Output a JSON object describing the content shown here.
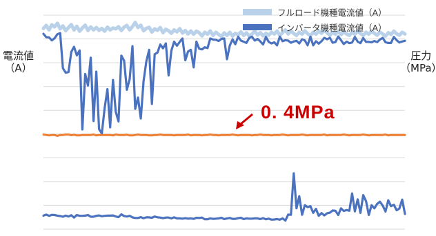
{
  "colors": {
    "full_load": "#b9d1e9",
    "inverter": "#4a72bf",
    "pressure": "#ed7d31",
    "annotation": "#cc0000",
    "grid": "#d9d9d9"
  },
  "left_axis": {
    "title_line1": "電流値",
    "title_line2": "（A）"
  },
  "right_axis": {
    "title_line1": "圧力",
    "title_line2": "（MPa）"
  },
  "annotation": {
    "text": "0. 4MPa"
  },
  "chart_data": {
    "type": "line",
    "grid": true,
    "legend_position": "top-right",
    "x": [
      0,
      1,
      2,
      3,
      4,
      5,
      6,
      7,
      8,
      9,
      10,
      11,
      12,
      13,
      14,
      15,
      16,
      17,
      18,
      19,
      20,
      21,
      22,
      23,
      24,
      25,
      26,
      27,
      28,
      29,
      30,
      31,
      32,
      33,
      34,
      35,
      36,
      37,
      38,
      39,
      40,
      41,
      42,
      43,
      44,
      45,
      46,
      47,
      48,
      49,
      50,
      51,
      52,
      53,
      54,
      55,
      56,
      57,
      58,
      59,
      60,
      61,
      62,
      63,
      64,
      65,
      66,
      67,
      68,
      69,
      70,
      71,
      72,
      73,
      74,
      75,
      76,
      77,
      78,
      79,
      80,
      81,
      82,
      83,
      84,
      85,
      86,
      87,
      88,
      89,
      90,
      91,
      92,
      93,
      94,
      95,
      96,
      97,
      98,
      99,
      100,
      101,
      102,
      103,
      104,
      105,
      106,
      107,
      108,
      109,
      110,
      111,
      112,
      113,
      114,
      115,
      116,
      117,
      118,
      119,
      120,
      121,
      122,
      123,
      124,
      125,
      126,
      127,
      128,
      129,
      130
    ],
    "series": [
      {
        "name": "フルロード機種電流値（A）",
        "color": "#b9d1e9",
        "values": [
          0.938,
          0.952,
          0.931,
          0.955,
          0.945,
          0.962,
          0.936,
          0.95,
          0.927,
          0.942,
          0.956,
          0.931,
          0.948,
          0.925,
          0.94,
          0.953,
          0.928,
          0.945,
          0.931,
          0.942,
          0.929,
          0.938,
          0.925,
          0.944,
          0.931,
          0.94,
          0.936,
          0.946,
          0.928,
          0.944,
          0.952,
          0.931,
          0.947,
          0.966,
          0.942,
          0.953,
          0.927,
          0.938,
          0.943,
          0.921,
          0.936,
          0.929,
          0.942,
          0.918,
          0.934,
          0.927,
          0.915,
          0.931,
          0.922,
          0.937,
          0.916,
          0.928,
          0.912,
          0.926,
          0.911,
          0.925,
          0.918,
          0.903,
          0.92,
          0.911,
          0.926,
          0.905,
          0.92,
          0.91,
          0.9,
          0.917,
          0.905,
          0.92,
          0.902,
          0.915,
          0.908,
          0.922,
          0.905,
          0.917,
          0.903,
          0.912,
          0.925,
          0.907,
          0.918,
          0.903,
          0.915,
          0.906,
          0.92,
          0.912,
          0.926,
          0.905,
          0.918,
          0.931,
          0.912,
          0.926,
          0.914,
          0.905,
          0.92,
          0.911,
          0.927,
          0.913,
          0.904,
          0.92,
          0.911,
          0.926,
          0.915,
          0.93,
          0.918,
          0.905,
          0.92,
          0.911,
          0.924,
          0.909,
          0.922,
          0.912,
          0.905,
          0.92,
          0.911,
          0.926,
          0.914,
          0.905,
          0.92,
          0.911,
          0.925,
          0.915,
          0.906,
          0.921,
          0.912,
          0.902,
          0.918,
          0.91,
          0.925,
          0.913,
          0.906,
          0.92,
          0.912
        ]
      },
      {
        "name": "インバータ機種電流値（A）",
        "color": "#4a72bf",
        "values": [
          0.913,
          0.897,
          0.896,
          0.882,
          0.892,
          0.911,
          0.916,
          0.752,
          0.731,
          0.734,
          0.828,
          0.852,
          0.812,
          0.835,
          0.466,
          0.725,
          0.671,
          0.801,
          0.505,
          0.736,
          0.467,
          0.447,
          0.566,
          0.654,
          0.476,
          0.697,
          0.548,
          0.503,
          0.811,
          0.787,
          0.651,
          0.702,
          0.855,
          0.562,
          0.615,
          0.517,
          0.691,
          0.784,
          0.838,
          0.585,
          0.817,
          0.825,
          0.863,
          0.845,
          0.868,
          0.718,
          0.834,
          0.876,
          0.857,
          0.875,
          0.891,
          0.789,
          0.83,
          0.838,
          0.756,
          0.876,
          0.843,
          0.84,
          0.85,
          0.846,
          0.891,
          0.886,
          0.885,
          0.879,
          0.889,
          0.891,
          0.794,
          0.858,
          0.887,
          0.864,
          0.899,
          0.881,
          0.876,
          0.87,
          0.894,
          0.899,
          0.881,
          0.889,
          0.877,
          0.863,
          0.898,
          0.875,
          0.868,
          0.873,
          0.859,
          0.899,
          0.878,
          0.883,
          0.881,
          0.871,
          0.877,
          0.88,
          0.868,
          0.887,
          0.882,
          0.859,
          0.899,
          0.859,
          0.878,
          0.867,
          0.878,
          0.894,
          0.887,
          0.894,
          0.871,
          0.874,
          0.9,
          0.883,
          0.865,
          0.876,
          0.869,
          0.872,
          0.898,
          0.876,
          0.869,
          0.893,
          0.875,
          0.875,
          0.873,
          0.879,
          0.874,
          0.886,
          0.894,
          0.873,
          0.87,
          0.87,
          0.898,
          0.883,
          0.872,
          0.877,
          0.88
        ]
      },
      {
        "name": "",
        "color": "#4a72bf",
        "values": [
          0.063,
          0.068,
          0.062,
          0.067,
          0.066,
          0.063,
          0.061,
          0.058,
          0.063,
          0.059,
          0.065,
          0.054,
          0.066,
          0.062,
          0.062,
          0.063,
          0.066,
          0.058,
          0.058,
          0.062,
          0.064,
          0.06,
          0.062,
          0.063,
          0.063,
          0.064,
          0.059,
          0.056,
          0.069,
          0.061,
          0.059,
          0.062,
          0.055,
          0.052,
          0.052,
          0.056,
          0.051,
          0.055,
          0.055,
          0.053,
          0.059,
          0.055,
          0.054,
          0.051,
          0.054,
          0.054,
          0.05,
          0.055,
          0.05,
          0.05,
          0.049,
          0.051,
          0.049,
          0.05,
          0.048,
          0.053,
          0.052,
          0.054,
          0.046,
          0.046,
          0.05,
          0.048,
          0.049,
          0.05,
          0.053,
          0.047,
          0.05,
          0.052,
          0.048,
          0.048,
          0.051,
          0.053,
          0.047,
          0.05,
          0.049,
          0.049,
          0.05,
          0.05,
          0.047,
          0.051,
          0.046,
          0.049,
          0.044,
          0.045,
          0.047,
          0.044,
          0.05,
          0.04,
          0.068,
          0.067,
          0.261,
          0.097,
          0.154,
          0.067,
          0.112,
          0.103,
          0.107,
          0.076,
          0.095,
          0.062,
          0.075,
          0.064,
          0.074,
          0.077,
          0.087,
          0.086,
          0.066,
          0.097,
          0.085,
          0.089,
          0.086,
          0.167,
          0.083,
          0.139,
          0.076,
          0.159,
          0.131,
          0.066,
          0.112,
          0.097,
          0.118,
          0.128,
          0.11,
          0.082,
          0.135,
          0.107,
          0.114,
          0.088,
          0.096,
          0.138,
          0.071
        ]
      },
      {
        "name": "",
        "color": "#ed7d31",
        "values": [
          0.442,
          0.44,
          0.438,
          0.44,
          0.44,
          0.436,
          0.44,
          0.44,
          0.442,
          0.442,
          0.439,
          0.441,
          0.438,
          0.438,
          0.44,
          0.44,
          0.44,
          0.44,
          0.442,
          0.438,
          0.44,
          0.44,
          0.44,
          0.44,
          0.44,
          0.438,
          0.442,
          0.44,
          0.44,
          0.44,
          0.441,
          0.438,
          0.438,
          0.44,
          0.442,
          0.44,
          0.44,
          0.44,
          0.438,
          0.438,
          0.44,
          0.44,
          0.442,
          0.44,
          0.44,
          0.44,
          0.44,
          0.438,
          0.44,
          0.44,
          0.44,
          0.44,
          0.442,
          0.438,
          0.44,
          0.44,
          0.44,
          0.438,
          0.44,
          0.44,
          0.442,
          0.44,
          0.44,
          0.438,
          0.44,
          0.44,
          0.44,
          0.44,
          0.442,
          0.44,
          0.438,
          0.44,
          0.44,
          0.44,
          0.44,
          0.438,
          0.44,
          0.44,
          0.442,
          0.44,
          0.44,
          0.44,
          0.438,
          0.44,
          0.44,
          0.44,
          0.442,
          0.44,
          0.438,
          0.44,
          0.44,
          0.44,
          0.44,
          0.442,
          0.44,
          0.438,
          0.44,
          0.44,
          0.44,
          0.44,
          0.44,
          0.442,
          0.438,
          0.44,
          0.44,
          0.44,
          0.44,
          0.44,
          0.442,
          0.44,
          0.438,
          0.44,
          0.44,
          0.44,
          0.44,
          0.442,
          0.44,
          0.438,
          0.44,
          0.44,
          0.44,
          0.44,
          0.44,
          0.442,
          0.438,
          0.44,
          0.44,
          0.44,
          0.44,
          0.44,
          0.44
        ]
      }
    ]
  }
}
